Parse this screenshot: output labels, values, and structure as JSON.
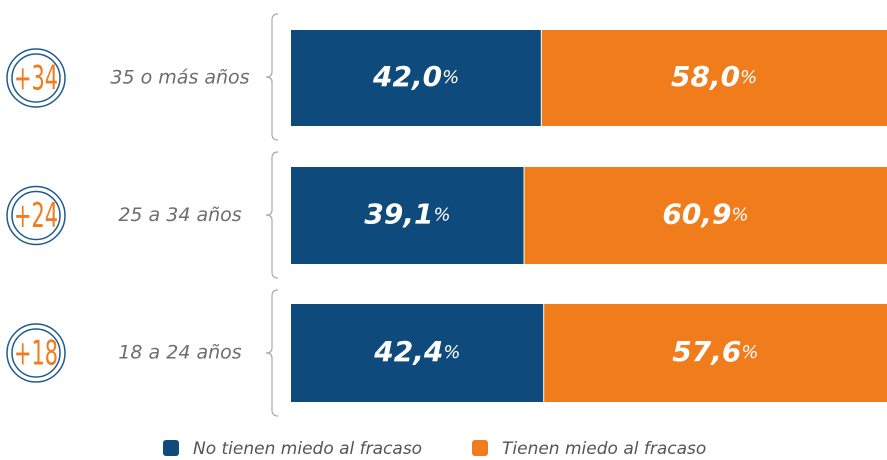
{
  "chart_data": {
    "type": "stacked-bar-horizontal",
    "categories": [
      "35 o más años",
      "25 a 34 años",
      "18 a 24 años"
    ],
    "badges": [
      "+34",
      "+24",
      "+18"
    ],
    "xlim": [
      0,
      100
    ],
    "series": [
      {
        "name": "No tienen miedo al fracaso",
        "color": "#0e4a7c",
        "values": [
          42.0,
          39.1,
          42.4
        ],
        "value_labels": [
          "42,0%",
          "39,1%",
          "42,4%"
        ]
      },
      {
        "name": "Tienen miedo al fracaso",
        "color": "#f07c1c",
        "values": [
          58.0,
          60.9,
          57.6
        ],
        "value_labels": [
          "58,0%",
          "60,9%",
          "57,6%"
        ]
      }
    ]
  }
}
